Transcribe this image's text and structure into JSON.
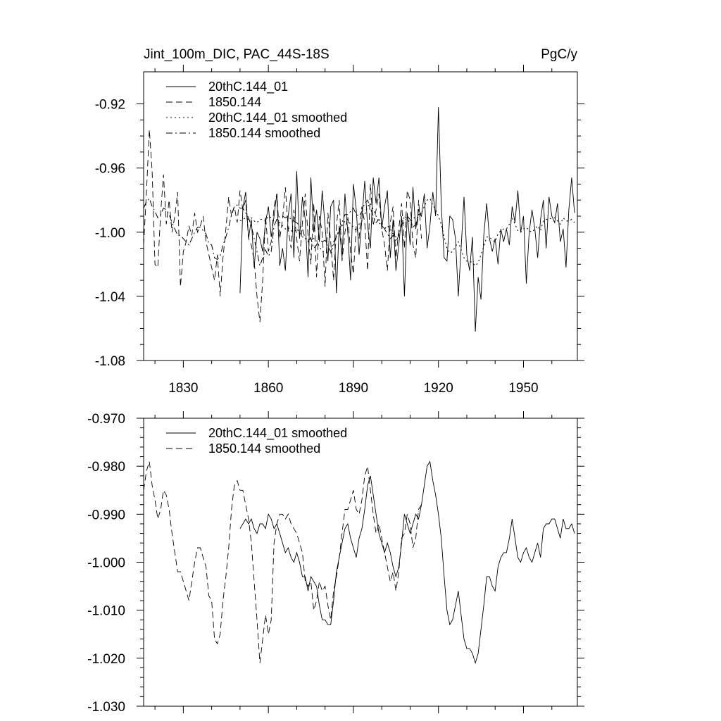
{
  "figure_title": "Jint_100m_DIC, PAC_44S-18S",
  "figure_units": "PgC/y",
  "chart_data": [
    {
      "type": "line",
      "title": "Jint_100m_DIC, PAC_44S-18S",
      "units": "PgC/y",
      "xlim": [
        1816,
        1969
      ],
      "ylim": [
        -1.08,
        -0.9
      ],
      "xticks": [
        1830,
        1860,
        1890,
        1920,
        1950
      ],
      "xtick_labels": [
        "1830",
        "1860",
        "1890",
        "1920",
        "1950"
      ],
      "yticks": [
        -0.92,
        -0.96,
        -1.0,
        -1.04,
        -1.08
      ],
      "ytick_labels": [
        "-0.92",
        "-0.96",
        "-1.00",
        "-1.04",
        "-1.08"
      ],
      "legend_position": "top-left",
      "series": [
        {
          "name": "20thC.144_01",
          "style": "solid",
          "x_start": 1850,
          "x_step": 1,
          "values": [
            -1.038,
            -0.985,
            -0.975,
            -1.004,
            -0.992,
            -1.022,
            -1.0,
            -1.004,
            -1.012,
            -0.994,
            -0.984,
            -1.003,
            -0.99,
            -0.976,
            -1.021,
            -1.01,
            -1.024,
            -0.99,
            -0.976,
            -1.016,
            -0.962,
            -1.004,
            -0.978,
            -0.992,
            -1.028,
            -0.966,
            -1.0,
            -0.986,
            -1.006,
            -0.974,
            -0.996,
            -1.018,
            -0.984,
            -0.98,
            -1.038,
            -0.996,
            -1.016,
            -0.976,
            -1.0,
            -1.03,
            -0.97,
            -0.986,
            -1.014,
            -0.992,
            -0.968,
            -0.996,
            -1.01,
            -0.966,
            -0.982,
            -0.966,
            -0.998,
            -0.984,
            -0.974,
            -1.016,
            -0.992,
            -1.024,
            -1.008,
            -0.99,
            -1.04,
            -0.988,
            -1.008,
            -0.972,
            -0.998,
            -0.986,
            -0.99,
            -0.976,
            -1.01,
            -0.996,
            -0.975,
            -0.99,
            -0.922,
            -0.983,
            -1.016,
            -1.018,
            -0.99,
            -0.992,
            -1.004,
            -1.04,
            -1.01,
            -0.978,
            -1.014,
            -1.024,
            -1.003,
            -1.062,
            -1.028,
            -1.042,
            -1.002,
            -0.982,
            -1.004,
            -1.012,
            -1.004,
            -1.02,
            -0.998,
            -1.006,
            -0.998,
            -1.008,
            -0.984,
            -0.994,
            -0.974,
            -1.0,
            -0.99,
            -1.032,
            -1.0,
            -0.986,
            -0.998,
            -1.016,
            -0.992,
            -0.98,
            -1.01,
            -0.978,
            -0.99,
            -0.994,
            -0.982,
            -1.006,
            -0.998,
            -1.022,
            -0.986,
            -0.966,
            -0.988
          ]
        },
        {
          "name": "1850.144",
          "style": "dashed",
          "x_start": 1816,
          "x_step": 1,
          "values": [
            -1.008,
            -0.975,
            -0.936,
            -0.962,
            -1.02,
            -1.022,
            -0.988,
            -0.964,
            -0.995,
            -0.98,
            -1.0,
            -0.99,
            -0.975,
            -1.034,
            -1.012,
            -1.006,
            -0.996,
            -1.002,
            -0.988,
            -1.0,
            -0.996,
            -0.99,
            -1.006,
            -1.014,
            -1.022,
            -1.03,
            -1.014,
            -1.04,
            -1.016,
            -0.998,
            -0.978,
            -0.99,
            -0.984,
            -0.994,
            -0.974,
            -0.986,
            -0.98,
            -1.004,
            -1.008,
            -1.018,
            -1.04,
            -1.056,
            -1.03,
            -0.99,
            -1.012,
            -1.006,
            -0.984,
            -0.976,
            -1.004,
            -0.992,
            -0.972,
            -0.998,
            -1.01,
            -0.986,
            -1.004,
            -1.018,
            -0.994,
            -0.976,
            -1.002,
            -1.02,
            -0.982,
            -1.028,
            -0.99,
            -1.0,
            -1.034,
            -0.988,
            -1.006,
            -1.03,
            -0.996,
            -0.98,
            -1.018,
            -1.0,
            -0.99,
            -1.012,
            -1.026,
            -0.996,
            -1.004,
            -0.984,
            -0.994,
            -1.024,
            -0.97,
            -0.996,
            -0.986,
            -0.976,
            -0.998,
            -1.008,
            -1.024,
            -0.994,
            -0.984,
            -1.016,
            -0.998,
            -0.982,
            -1.01,
            -0.974,
            -0.98,
            -1.008,
            -1.016,
            -0.98,
            -1.004
          ]
        },
        {
          "name": "20thC.144_01 smoothed",
          "style": "dotted",
          "x_start": 1850,
          "x_step": 1,
          "values": [
            -0.993,
            -0.992,
            -0.991,
            -0.992,
            -0.991,
            -0.993,
            -0.994,
            -0.992,
            -0.992,
            -0.993,
            -0.99,
            -0.991,
            -0.993,
            -0.992,
            -0.994,
            -0.996,
            -0.998,
            -0.997,
            -0.999,
            -1.0,
            -0.998,
            -1.0,
            -1.003,
            -1.003,
            -1.006,
            -1.003,
            -1.004,
            -1.005,
            -1.009,
            -1.012,
            -1.012,
            -1.013,
            -1.013,
            -1.008,
            -1.002,
            -0.999,
            -0.996,
            -0.993,
            -0.992,
            -0.995,
            -0.997,
            -0.999,
            -0.995,
            -0.993,
            -0.989,
            -0.984,
            -0.982,
            -0.986,
            -0.99,
            -0.994,
            -0.996,
            -0.998,
            -0.996,
            -0.998,
            -1.001,
            -1.003,
            -1.001,
            -0.996,
            -0.99,
            -0.992,
            -0.994,
            -0.992,
            -0.99,
            -0.991,
            -0.988,
            -0.984,
            -0.98,
            -0.979,
            -0.983,
            -0.986,
            -0.99,
            -0.995,
            -1.003,
            -1.01,
            -1.013,
            -1.012,
            -1.009,
            -1.006,
            -1.011,
            -1.016,
            -1.018,
            -1.018,
            -1.019,
            -1.021,
            -1.019,
            -1.014,
            -1.009,
            -1.003,
            -1.003,
            -1.005,
            -1.006,
            -1.001,
            -0.999,
            -0.998,
            -0.998,
            -0.995,
            -0.991,
            -0.995,
            -0.999,
            -1.0,
            -0.998,
            -0.997,
            -0.999,
            -1.0,
            -0.998,
            -0.996,
            -0.999,
            -0.993,
            -0.992,
            -0.992,
            -0.991,
            -0.991,
            -0.993,
            -0.995,
            -0.991,
            -0.993,
            -0.993,
            -0.992,
            -0.994
          ]
        },
        {
          "name": "1850.144 smoothed",
          "style": "dashdot",
          "x_start": 1816,
          "x_step": 1,
          "values": [
            -0.985,
            -0.981,
            -0.979,
            -0.984,
            -0.987,
            -0.991,
            -0.989,
            -0.985,
            -0.986,
            -0.989,
            -0.994,
            -0.998,
            -1.002,
            -1.002,
            -1.004,
            -1.006,
            -1.008,
            -1.004,
            -1.0,
            -0.997,
            -0.997,
            -0.999,
            -1.001,
            -1.007,
            -1.008,
            -1.016,
            -1.017,
            -1.015,
            -1.008,
            -1.003,
            -0.997,
            -0.989,
            -0.984,
            -0.983,
            -0.985,
            -0.985,
            -0.988,
            -0.991,
            -0.996,
            -1.004,
            -1.012,
            -1.021,
            -1.016,
            -1.011,
            -1.015,
            -1.012,
            -0.996,
            -0.992,
            -0.99,
            -0.99,
            -0.991,
            -0.99,
            -0.992,
            -0.993,
            -0.994,
            -0.996,
            -0.998,
            -1.004,
            -1.005,
            -1.004,
            -1.01,
            -1.008,
            -1.004,
            -1.006,
            -1.005,
            -1.009,
            -1.012,
            -1.006,
            -1.003,
            -0.999,
            -0.994,
            -0.989,
            -0.989,
            -0.987,
            -0.985,
            -0.989,
            -0.99,
            -0.987,
            -0.982,
            -0.98,
            -0.985,
            -0.99,
            -0.994,
            -0.992,
            -0.995,
            -0.998,
            -1.001,
            -1.004,
            -1.002,
            -1.006,
            -1.002,
            -0.995,
            -0.994,
            -0.99,
            -0.992,
            -0.997,
            -0.995,
            -0.989,
            -0.988
          ]
        }
      ]
    },
    {
      "type": "line",
      "title": "",
      "xlim": [
        1816,
        1969
      ],
      "ylim": [
        -1.03,
        -0.97
      ],
      "xticks": [
        1830,
        1860,
        1890,
        1920,
        1950
      ],
      "yticks": [
        -0.97,
        -0.98,
        -0.99,
        -1.0,
        -1.01,
        -1.02,
        -1.03
      ],
      "ytick_labels": [
        "-0.970",
        "-0.980",
        "-0.990",
        "-1.000",
        "-1.010",
        "-1.020",
        "-1.030"
      ],
      "legend_position": "top-left",
      "series": [
        {
          "name": "20thC.144_01 smoothed",
          "style": "solid",
          "ref": "20thC.144_01 smoothed"
        },
        {
          "name": "1850.144 smoothed",
          "style": "dashed",
          "ref": "1850.144 smoothed"
        }
      ]
    }
  ]
}
